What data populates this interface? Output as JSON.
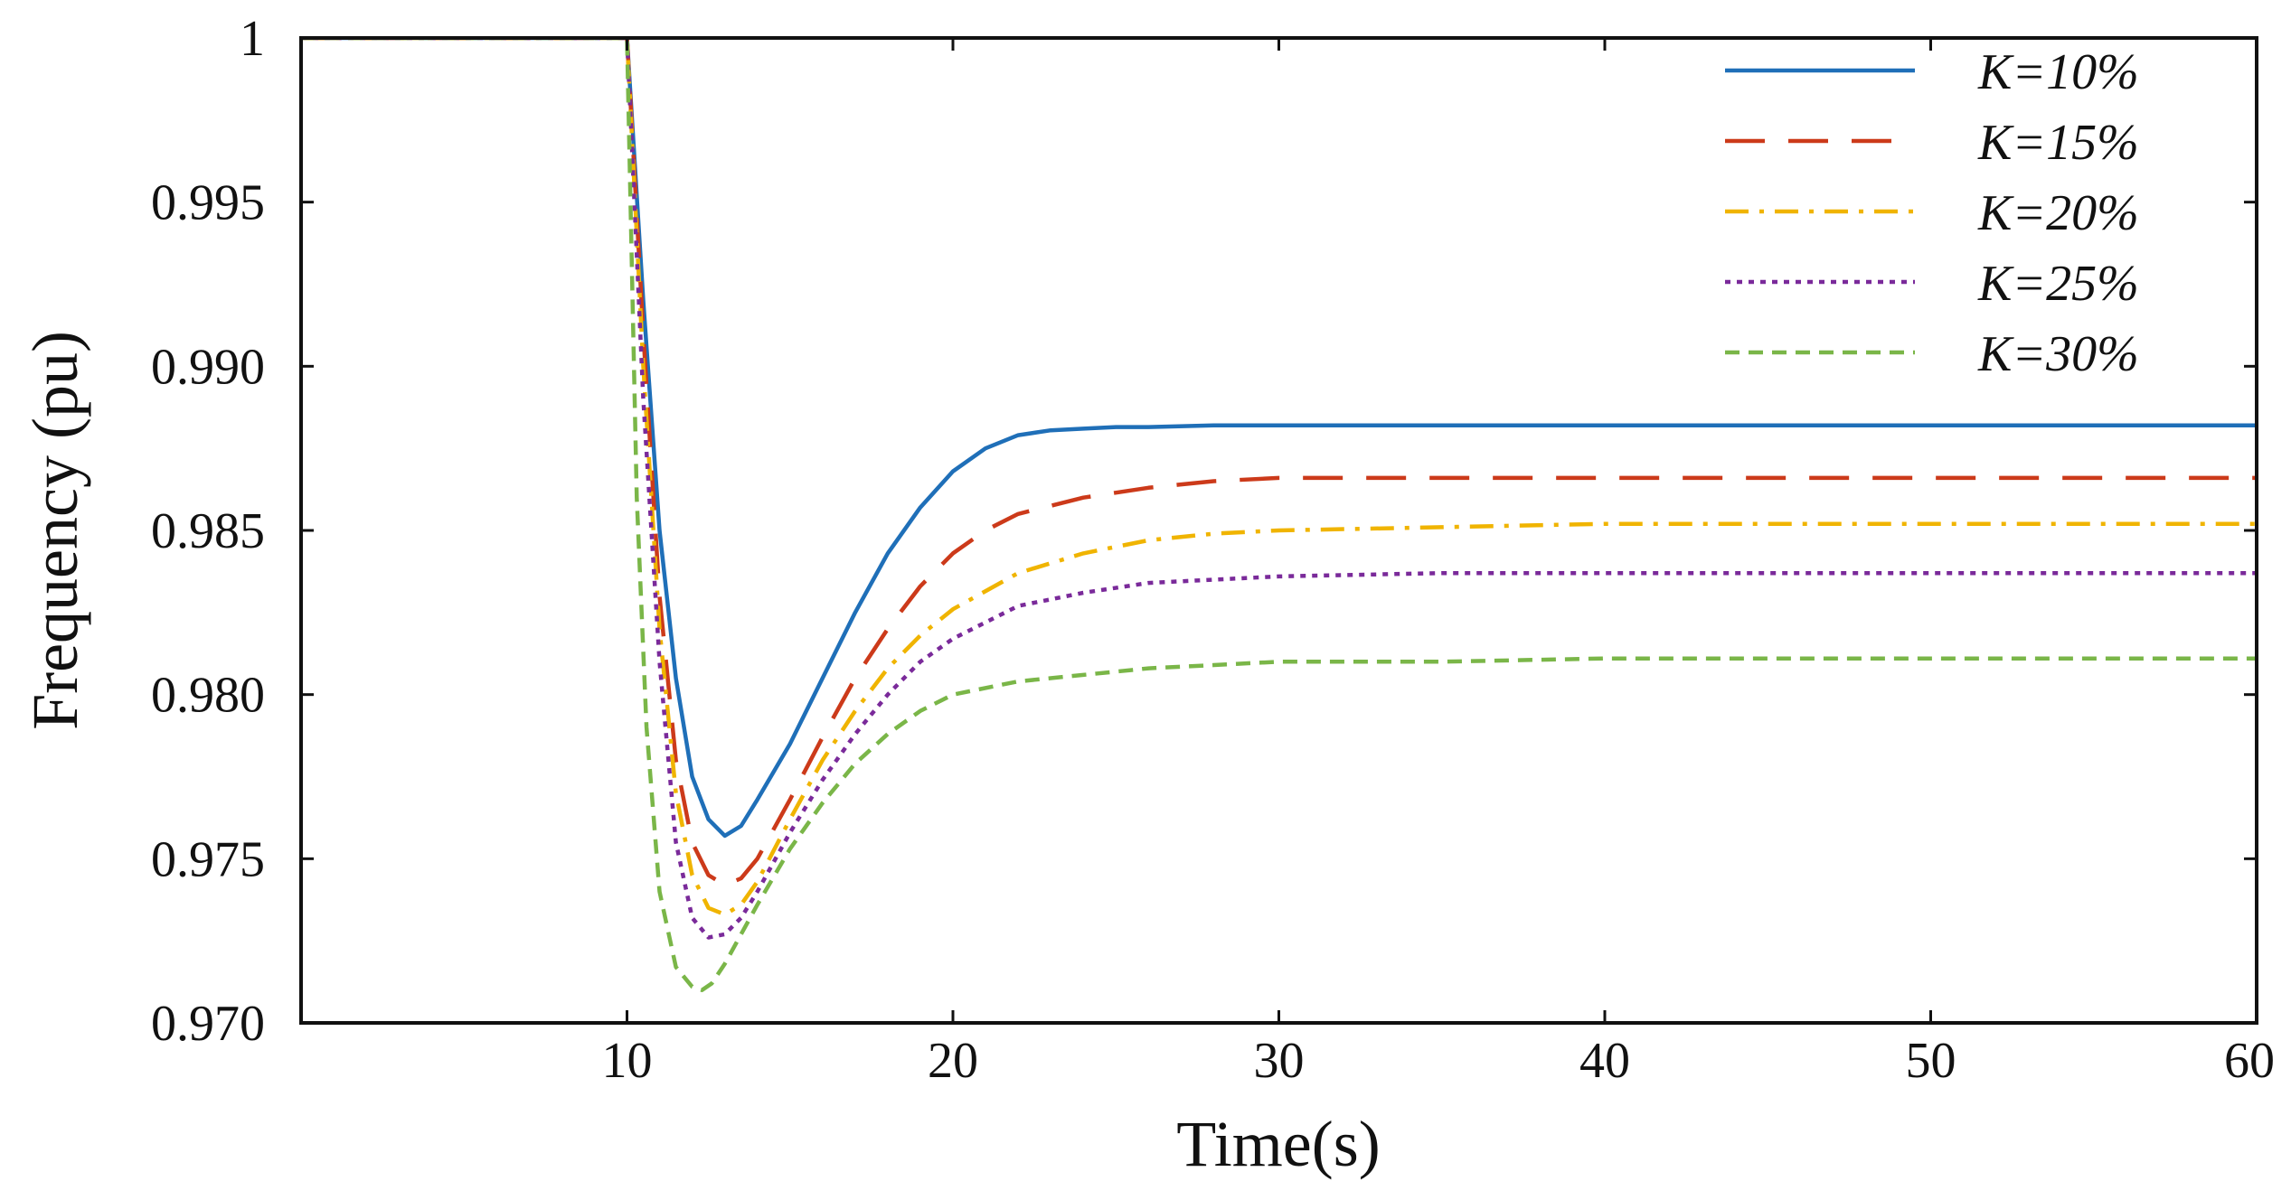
{
  "chart_data": {
    "type": "line",
    "title": "",
    "xlabel": "Time(s)",
    "ylabel": "Frequency (pu)",
    "xlim": [
      0,
      60
    ],
    "ylim": [
      0.97,
      1.0
    ],
    "x_ticks": [
      {
        "value": 10,
        "label": "10"
      },
      {
        "value": 20,
        "label": "20"
      },
      {
        "value": 30,
        "label": "30"
      },
      {
        "value": 40,
        "label": "40"
      },
      {
        "value": 50,
        "label": "50"
      },
      {
        "value": 60,
        "label": "60"
      }
    ],
    "y_ticks": [
      {
        "value": 1.0,
        "label": "1"
      },
      {
        "value": 0.995,
        "label": "0.995"
      },
      {
        "value": 0.99,
        "label": "0.990"
      },
      {
        "value": 0.985,
        "label": "0.985"
      },
      {
        "value": 0.98,
        "label": "0.980"
      },
      {
        "value": 0.975,
        "label": "0.975"
      },
      {
        "value": 0.97,
        "label": "0.970"
      }
    ],
    "grid": false,
    "legend_position": "top-right",
    "series": [
      {
        "name": "K=10%",
        "color": "#1f6fb8",
        "dash": "solid",
        "x": [
          0,
          10,
          10.5,
          11,
          11.5,
          12,
          12.5,
          13,
          13.5,
          14,
          15,
          16,
          17,
          18,
          19,
          20,
          21,
          22,
          23,
          24,
          25,
          26,
          28,
          30,
          35,
          40,
          50,
          60
        ],
        "y": [
          1.0,
          1.0,
          0.992,
          0.985,
          0.9805,
          0.9775,
          0.9762,
          0.9757,
          0.976,
          0.9768,
          0.9785,
          0.9805,
          0.9825,
          0.9843,
          0.9857,
          0.9868,
          0.9875,
          0.9879,
          0.98805,
          0.9881,
          0.98815,
          0.98815,
          0.9882,
          0.9882,
          0.9882,
          0.9882,
          0.9882,
          0.9882
        ]
      },
      {
        "name": "K=15%",
        "color": "#cc3a1a",
        "dash": "long-dash",
        "x": [
          0,
          10,
          10.5,
          11,
          11.5,
          12,
          12.5,
          13,
          13.5,
          14,
          15,
          16,
          17,
          18,
          19,
          20,
          21,
          22,
          24,
          26,
          28,
          30,
          35,
          40,
          50,
          60
        ],
        "y": [
          1.0,
          1.0,
          0.991,
          0.983,
          0.978,
          0.9755,
          0.9745,
          0.9742,
          0.9744,
          0.975,
          0.9768,
          0.9787,
          0.9805,
          0.982,
          0.9833,
          0.9843,
          0.985,
          0.9855,
          0.986,
          0.9863,
          0.9865,
          0.9866,
          0.9866,
          0.9866,
          0.9866,
          0.9866
        ]
      },
      {
        "name": "K=20%",
        "color": "#f0b400",
        "dash": "dash-dot",
        "x": [
          0,
          10,
          10.5,
          11,
          11.5,
          12,
          12.5,
          13,
          13.5,
          14,
          15,
          16,
          17,
          18,
          19,
          20,
          22,
          24,
          26,
          28,
          30,
          35,
          40,
          50,
          60
        ],
        "y": [
          1.0,
          1.0,
          0.99,
          0.982,
          0.977,
          0.9745,
          0.9735,
          0.9733,
          0.9736,
          0.9743,
          0.9762,
          0.978,
          0.9795,
          0.9808,
          0.9818,
          0.9826,
          0.9837,
          0.9843,
          0.9847,
          0.9849,
          0.985,
          0.9851,
          0.9852,
          0.9852,
          0.9852
        ]
      },
      {
        "name": "K=25%",
        "color": "#7a2a9a",
        "dash": "dotted",
        "x": [
          0,
          10,
          10.5,
          11,
          11.5,
          12,
          12.5,
          13,
          13.5,
          14,
          15,
          16,
          17,
          18,
          19,
          20,
          22,
          24,
          26,
          28,
          30,
          35,
          40,
          50,
          60
        ],
        "y": [
          1.0,
          1.0,
          0.989,
          0.981,
          0.9755,
          0.9732,
          0.9726,
          0.9727,
          0.9732,
          0.974,
          0.9758,
          0.9774,
          0.9788,
          0.98,
          0.981,
          0.9817,
          0.9827,
          0.9831,
          0.9834,
          0.9835,
          0.9836,
          0.9837,
          0.9837,
          0.9837,
          0.9837
        ]
      },
      {
        "name": "K=30%",
        "color": "#7ab648",
        "dash": "short-dash",
        "x": [
          0,
          10,
          10.3,
          10.6,
          11,
          11.5,
          12,
          12.3,
          12.6,
          13,
          13.5,
          14,
          15,
          16,
          17,
          18,
          19,
          20,
          22,
          24,
          26,
          28,
          30,
          35,
          40,
          50,
          60
        ],
        "y": [
          1.0,
          1.0,
          0.986,
          0.979,
          0.974,
          0.9717,
          0.9711,
          0.971,
          0.9712,
          0.9718,
          0.9727,
          0.9736,
          0.9753,
          0.9767,
          0.9779,
          0.9788,
          0.9795,
          0.98,
          0.9804,
          0.9806,
          0.9808,
          0.9809,
          0.981,
          0.981,
          0.9811,
          0.9811,
          0.9811
        ]
      }
    ]
  }
}
